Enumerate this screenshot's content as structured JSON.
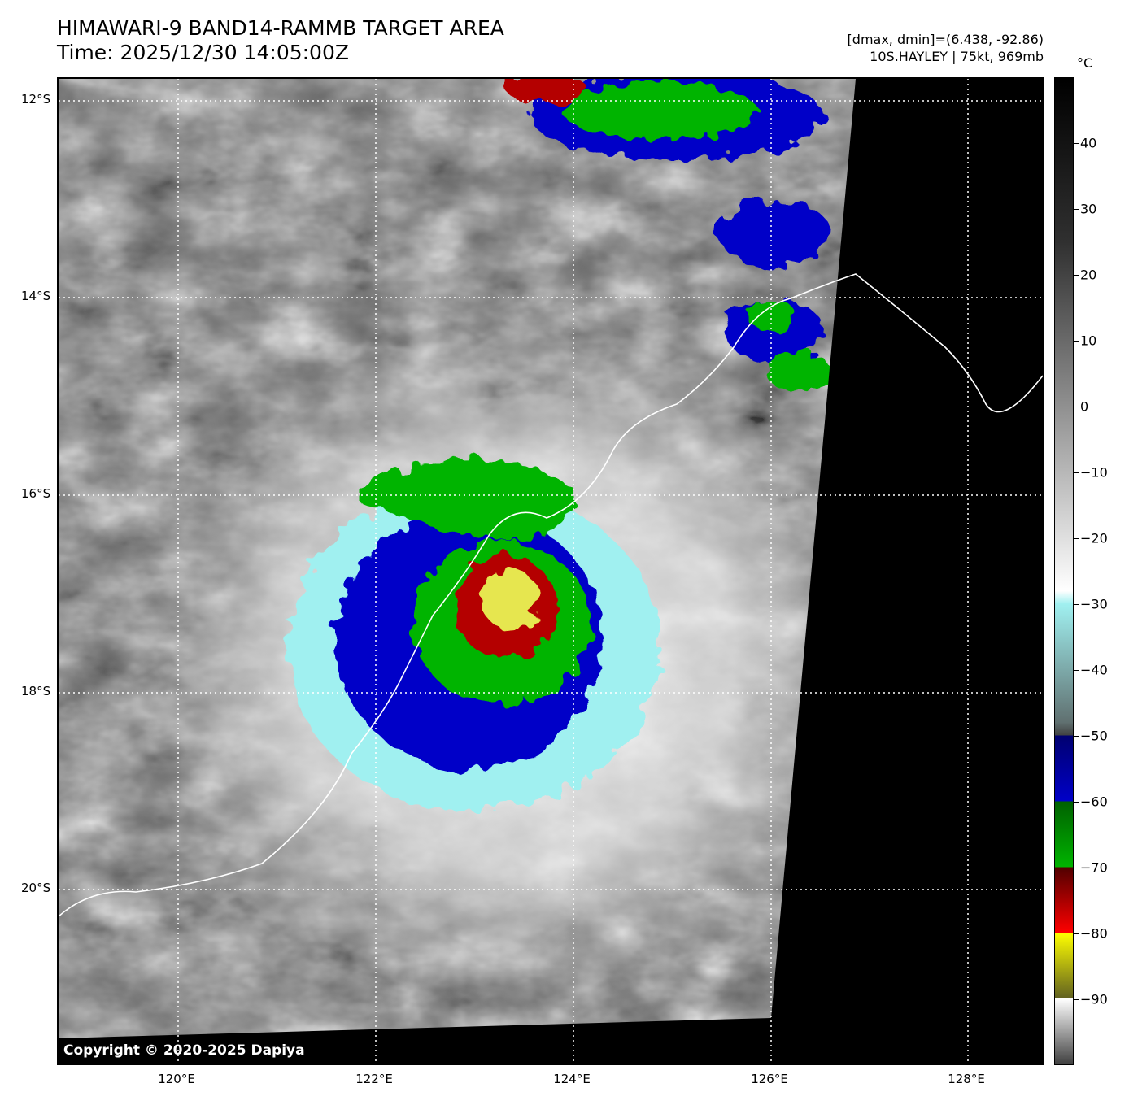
{
  "header": {
    "title_line1": "HIMAWARI-9 BAND14-RAMMB TARGET AREA",
    "title_line2": "Time: 2025/12/30 14:05:00Z",
    "info_line1": "[dmax, dmin]=(6.438, -92.86)",
    "info_line2": "10S.HAYLEY | 75kt, 969mb"
  },
  "map": {
    "lat_labels": [
      "12°S",
      "14°S",
      "16°S",
      "18°S",
      "20°S"
    ],
    "lon_labels": [
      "120°E",
      "122°E",
      "124°E",
      "126°E",
      "128°E"
    ],
    "lat_range": [
      -21.6,
      -11.8
    ],
    "lon_range": [
      118.8,
      128.8
    ],
    "copyright": "Copyright © 2020-2025 Dapiya",
    "storm_center": {
      "lat": -17.1,
      "lon": 123.3
    }
  },
  "colorbar": {
    "unit": "°C",
    "range": [
      -100,
      50
    ],
    "labels": [
      "40",
      "30",
      "20",
      "10",
      "0",
      "−10",
      "−20",
      "−30",
      "−40",
      "−50",
      "−60",
      "−70",
      "−80",
      "−90"
    ],
    "values": [
      40,
      30,
      20,
      10,
      0,
      -10,
      -20,
      -30,
      -40,
      -50,
      -60,
      -70,
      -80,
      -90
    ]
  },
  "colors": {
    "blue": "#0000c8",
    "green": "#00b400",
    "red": "#b40000",
    "yellow": "#e6e650",
    "cyan": "#a0f0f0"
  }
}
